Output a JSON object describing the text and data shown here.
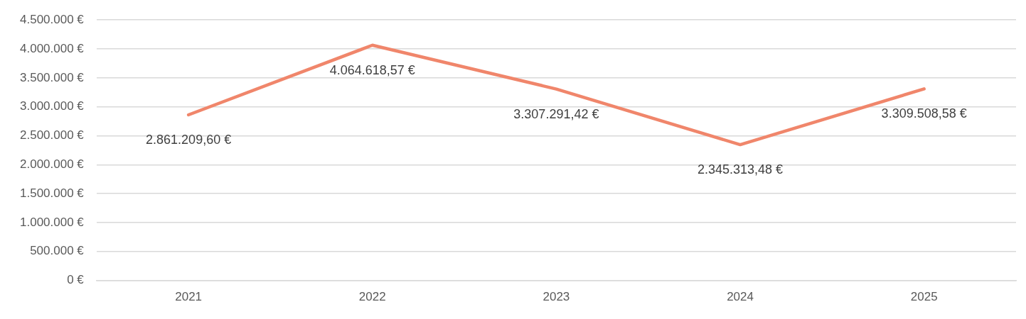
{
  "chart_data": {
    "type": "line",
    "categories": [
      "2021",
      "2022",
      "2023",
      "2024",
      "2025"
    ],
    "series": [
      {
        "color": "#f0866b",
        "values": [
          2861209.6,
          4064618.57,
          3307291.42,
          2345313.48,
          3309508.58
        ],
        "value_labels": [
          "2.861.209,60 €",
          "4.064.618,57 €",
          "3.307.291,42 €",
          "2.345.313,48 €",
          "3.309.508,58 €"
        ]
      }
    ],
    "ylim": [
      0,
      4500000
    ],
    "yticks": [
      {
        "value": 0,
        "label": "0 €"
      },
      {
        "value": 500000,
        "label": "500.000 €"
      },
      {
        "value": 1000000,
        "label": "1.000.000 €"
      },
      {
        "value": 1500000,
        "label": "1.500.000 €"
      },
      {
        "value": 2000000,
        "label": "2.000.000 €"
      },
      {
        "value": 2500000,
        "label": "2.500.000 €"
      },
      {
        "value": 3000000,
        "label": "3.000.000 €"
      },
      {
        "value": 3500000,
        "label": "3.500.000 €"
      },
      {
        "value": 4000000,
        "label": "4.000.000 €"
      },
      {
        "value": 4500000,
        "label": "4.500.000 €"
      }
    ],
    "grid": "y",
    "marker": "none",
    "line_style": "solid",
    "legend": false
  }
}
